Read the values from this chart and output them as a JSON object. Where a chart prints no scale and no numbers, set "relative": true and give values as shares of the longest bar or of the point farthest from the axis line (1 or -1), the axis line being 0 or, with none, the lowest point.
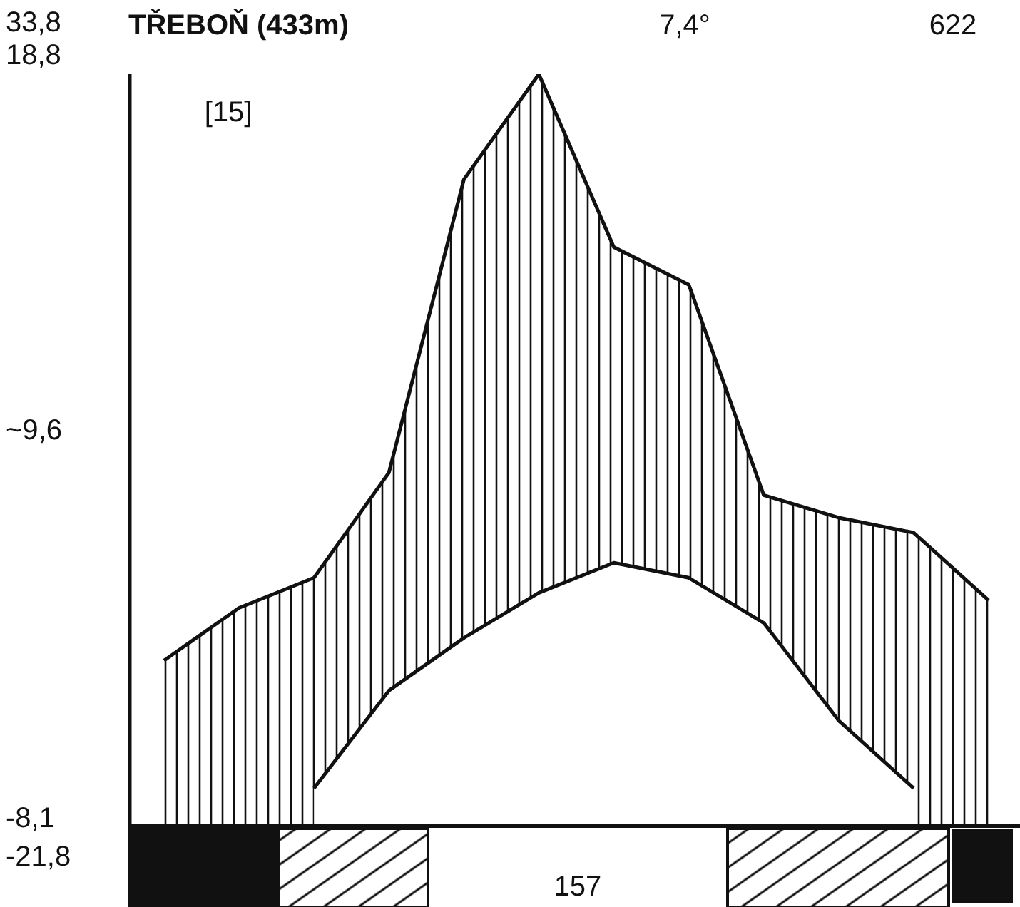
{
  "chart_data": {
    "type": "area",
    "title": "TŘEBOŇ (433m)",
    "relative": true,
    "categories": [
      null,
      null,
      null,
      null,
      null,
      null,
      null,
      null,
      null,
      null,
      null,
      null
    ],
    "series": [
      {
        "type": "area",
        "color": "#111111",
        "values": [
          0.22,
          0.29,
          0.33,
          0.47,
          0.86,
          1,
          0.77,
          0.72,
          0.44,
          0.41,
          0.39,
          0.3
        ]
      },
      {
        "type": "area",
        "color": "#ffffff",
        "values": [
          null,
          null,
          0.05,
          0.18,
          0.25,
          0.31,
          0.35,
          0.33,
          0.27,
          0.14,
          0.05,
          null
        ]
      }
    ],
    "annotations": [
      "33,8",
      "18,8",
      "~9,6",
      "-8,1",
      "-21,8",
      "[15]",
      "7,4°",
      "622",
      "157"
    ],
    "legend": false
  }
}
